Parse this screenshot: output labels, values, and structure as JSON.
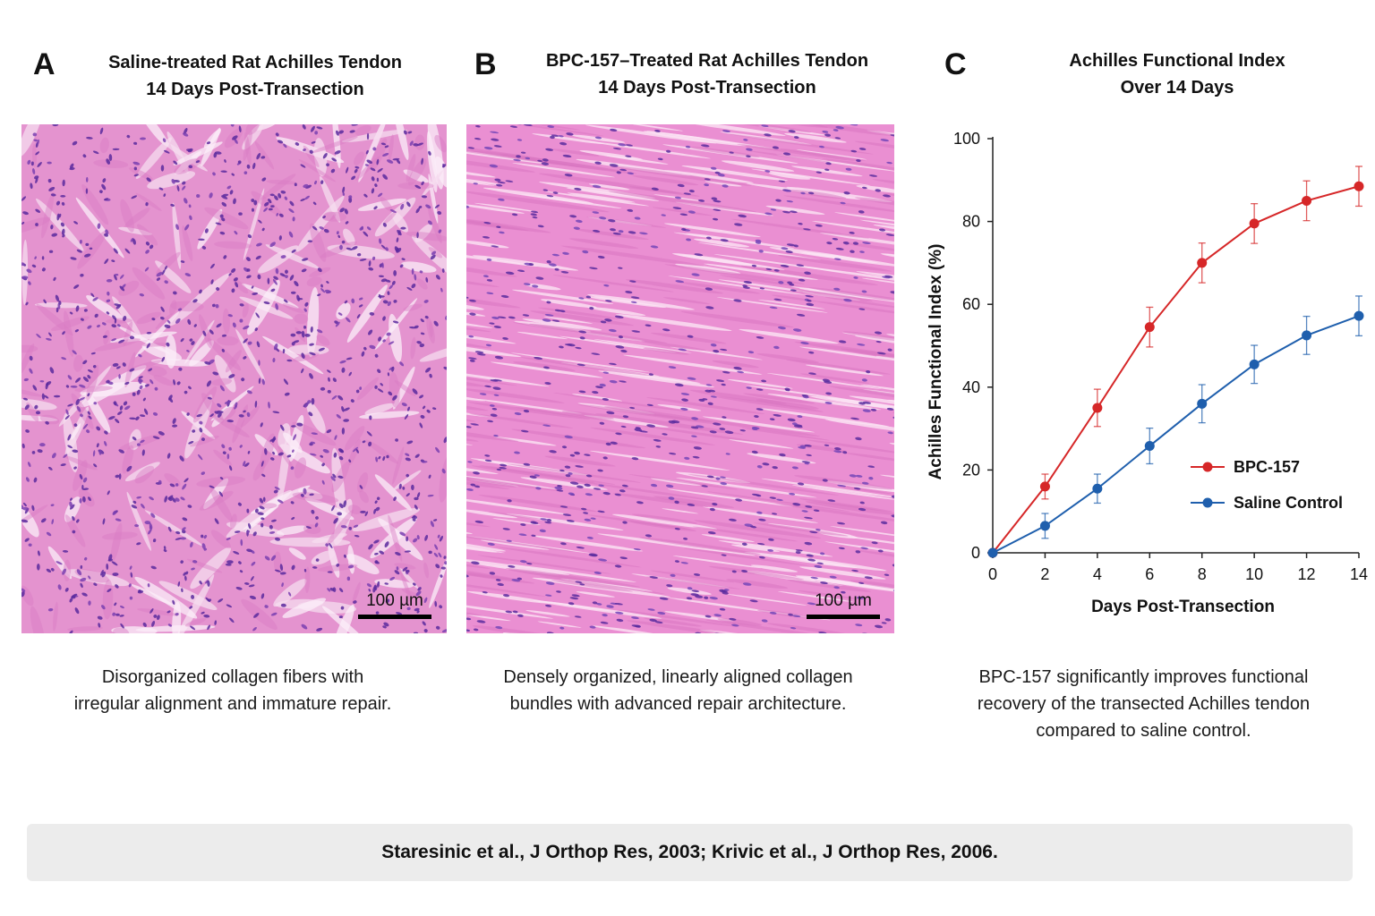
{
  "panels": {
    "a": {
      "letter": "A",
      "title_line1": "Saline-treated Rat Achilles Tendon",
      "title_line2": "14 Days Post-Transection",
      "scale_label": "100 µm",
      "caption_line1": "Disorganized collagen fibers with",
      "caption_line2": "irregular alignment and immature repair."
    },
    "b": {
      "letter": "B",
      "title_line1": "BPC-157–Treated Rat Achilles Tendon",
      "title_line2": "14 Days Post-Transection",
      "scale_label": "100 µm",
      "caption_line1": "Densely organized, linearly aligned collagen",
      "caption_line2": "bundles with advanced repair architecture."
    },
    "c": {
      "letter": "C",
      "title_line1": "Achilles Functional Index",
      "title_line2": "Over 14 Days",
      "caption_line1": "BPC-157 significantly improves functional",
      "caption_line2": "recovery of the transected Achilles tendon",
      "caption_line3": "compared to saline control."
    }
  },
  "chart_data": {
    "type": "line",
    "title": "Achilles Functional Index Over 14 Days",
    "xlabel": "Days Post-Transection",
    "ylabel": "Achilles Functional Index (%)",
    "x": [
      0,
      2,
      4,
      6,
      8,
      10,
      12,
      14
    ],
    "xlim": [
      0,
      14
    ],
    "ylim": [
      0,
      100
    ],
    "xticks": [
      0,
      2,
      4,
      6,
      8,
      10,
      12,
      14
    ],
    "yticks": [
      0,
      20,
      40,
      60,
      80,
      100
    ],
    "grid": false,
    "legend_position": "lower-right",
    "series": [
      {
        "name": "BPC-157",
        "color": "#d62728",
        "values": [
          0,
          16,
          35,
          54.5,
          70,
          79.5,
          85,
          88.5
        ],
        "errors": [
          0,
          3,
          4.5,
          4.8,
          4.8,
          4.8,
          4.8,
          4.8
        ]
      },
      {
        "name": "Saline Control",
        "color": "#1f5fad",
        "values": [
          0,
          6.5,
          15.5,
          25.8,
          36,
          45.5,
          52.5,
          57.2
        ],
        "errors": [
          0,
          3,
          3.5,
          4.3,
          4.6,
          4.6,
          4.6,
          4.8
        ]
      }
    ]
  },
  "footer": {
    "citation": "Staresinic et al., J Orthop Res, 2003; Krivic et al., J Orthop Res, 2006."
  },
  "colors": {
    "stain_pink": "#e98fd0",
    "nuclei": "#5b2a9e",
    "bpc_red": "#d62728",
    "saline_blue": "#1f5fad",
    "footer_bg": "#ececec"
  }
}
